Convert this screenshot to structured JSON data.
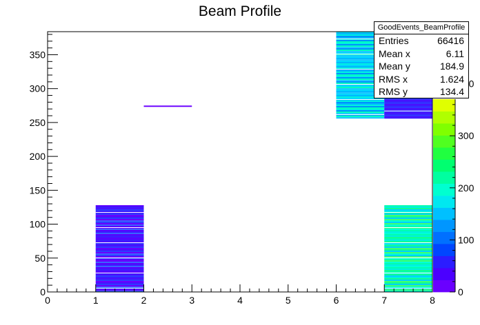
{
  "chart_data": {
    "type": "heatmap",
    "title": "Beam Profile",
    "xlabel": "",
    "ylabel": "",
    "xlim": [
      0,
      8
    ],
    "ylim": [
      0,
      384
    ],
    "x_ticks": [
      "0",
      "1",
      "2",
      "3",
      "4",
      "5",
      "6",
      "7",
      "8"
    ],
    "y_ticks": [
      "0",
      "50",
      "100",
      "150",
      "200",
      "250",
      "300",
      "350"
    ],
    "colorbar": {
      "range": [
        0,
        500
      ],
      "ticks": [
        "0",
        "100",
        "200",
        "300",
        "400"
      ],
      "palette": [
        "#6a00ff",
        "#4b00ff",
        "#2b1dff",
        "#0046ff",
        "#0070ff",
        "#0096ff",
        "#00c0ff",
        "#00e8f0",
        "#00ffd0",
        "#00ffa0",
        "#00ff70",
        "#20ff40",
        "#50ff20",
        "#80ff00",
        "#b0ff00",
        "#e0ff00"
      ]
    },
    "regions": [
      {
        "x": [
          1,
          2
        ],
        "y": [
          0,
          128
        ],
        "level": "low",
        "colors": [
          "#5a00ff",
          "#3c1cff",
          "#4a10ff",
          "#2e3cff",
          "#6a00ff",
          "#3a64ff"
        ]
      },
      {
        "x": [
          2,
          3
        ],
        "y": [
          273,
          275
        ],
        "level": "very low",
        "colors": [
          "#6a00ff"
        ]
      },
      {
        "x": [
          6,
          7
        ],
        "y": [
          256,
          384
        ],
        "level": "medium",
        "colors": [
          "#00d8ff",
          "#00b8ff",
          "#00f0e0",
          "#0090ff",
          "#00ffc0",
          "#20c8ff"
        ]
      },
      {
        "x": [
          7,
          8
        ],
        "y": [
          0,
          128
        ],
        "level": "medium-high",
        "colors": [
          "#00ffb0",
          "#00f0e0",
          "#10ff90",
          "#00d0ff",
          "#40ff70",
          "#00ffd8"
        ]
      },
      {
        "x": [
          7,
          8
        ],
        "y": [
          256,
          300
        ],
        "level": "low",
        "colors": [
          "#3c1cff",
          "#2e3cff",
          "#4a10ff"
        ]
      }
    ],
    "stats": {
      "name": "GoodEvents_BeamProfile",
      "rows": [
        {
          "label": "Entries",
          "value": "66416"
        },
        {
          "label": "Mean x",
          "value": "6.11"
        },
        {
          "label": "Mean y",
          "value": "184.9"
        },
        {
          "label": "RMS x",
          "value": "1.624"
        },
        {
          "label": "RMS y",
          "value": "134.4"
        }
      ]
    },
    "colors": {
      "axis": "#000000",
      "background": "#ffffff"
    }
  }
}
